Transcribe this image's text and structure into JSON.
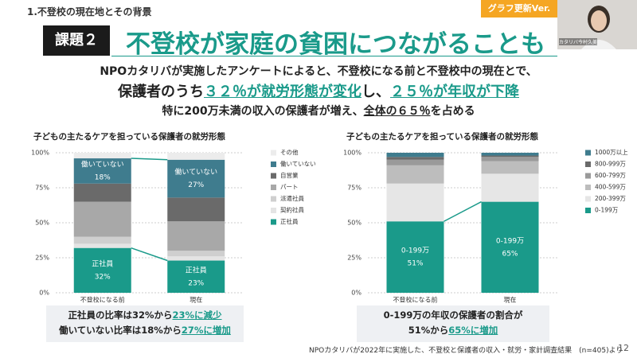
{
  "slide": {
    "section": "1.不登校の現在地とその背景",
    "badge": "グラフ更新Ver.",
    "camera_name": "カタリバ今村久美",
    "tag": "課題２",
    "title": "不登校が家庭の貧困につながることも",
    "line1": "NPOカタリバが実施したアンケートによると、不登校になる前と不登校中の現在とで、",
    "line2": [
      "保護者のうち",
      "３２％が就労形態が変化",
      "し、",
      "２５％が年収が下降"
    ],
    "line3": [
      "特に200万未満の収入の保護者が増え、",
      "全体の６５％",
      "を占める"
    ],
    "summary_left": [
      [
        "正社員の比率は32%から",
        "23%に減少"
      ],
      [
        "働いていない比率は18%から",
        "27%に増加"
      ]
    ],
    "summary_right": [
      [
        "0-199万の年収の保護者の割合が"
      ],
      [
        "51%から",
        "65%に増加"
      ]
    ],
    "footer": "NPOカタリバが2022年に実施した、不登校と保護者の収入・就労・家計調査結果　(n=405)より",
    "page": "12"
  },
  "chart_data": [
    {
      "type": "stacked_bar",
      "title": "子どもの主たるケアを担っている保護者の就労形態",
      "categories": [
        "不登校になる前",
        "現在"
      ],
      "ylim": [
        0,
        100
      ],
      "yticks": [
        {
          "value": 0,
          "label": "0%"
        },
        {
          "value": 25,
          "label": "25%"
        },
        {
          "value": 50,
          "label": "50%"
        },
        {
          "value": 75,
          "label": "75%"
        },
        {
          "value": 100,
          "label": "100%"
        }
      ],
      "grid": true,
      "series": [
        {
          "name": "正社員",
          "color": "#1a9a8a",
          "values": [
            32,
            23
          ],
          "value_labels": [
            "32%",
            "23%"
          ]
        },
        {
          "name": "契約社員",
          "color": "#e4e4e4",
          "values": [
            3,
            3
          ]
        },
        {
          "name": "派遣社員",
          "color": "#cfcfcf",
          "values": [
            5,
            4
          ]
        },
        {
          "name": "パート",
          "color": "#a8a8a8",
          "values": [
            25,
            21
          ]
        },
        {
          "name": "自営業",
          "color": "#6a6a6a",
          "values": [
            13,
            17
          ]
        },
        {
          "name": "働いていない",
          "color": "#3f7c8e",
          "values": [
            18,
            27
          ],
          "value_labels": [
            "18%",
            "27%"
          ]
        },
        {
          "name": "その他",
          "color": "#ececec",
          "values": [
            4,
            5
          ]
        }
      ]
    },
    {
      "type": "stacked_bar",
      "title": "子どもの主たるケアを担っている保護者の就労形態",
      "categories": [
        "不登校になる前",
        "現在"
      ],
      "ylim": [
        0,
        100
      ],
      "yticks": [
        {
          "value": 0,
          "label": "0%"
        },
        {
          "value": 25,
          "label": "25%"
        },
        {
          "value": 50,
          "label": "50%"
        },
        {
          "value": 75,
          "label": "75%"
        },
        {
          "value": 100,
          "label": "100%"
        }
      ],
      "grid": true,
      "series": [
        {
          "name": "0-199万",
          "color": "#1a9a8a",
          "values": [
            51,
            65
          ],
          "value_labels": [
            "51%",
            "65%"
          ]
        },
        {
          "name": "200-399万",
          "color": "#e6e6e6",
          "values": [
            27,
            20
          ]
        },
        {
          "name": "400-599万",
          "color": "#bdbdbd",
          "values": [
            13,
            9
          ]
        },
        {
          "name": "600-799万",
          "color": "#9a9a9a",
          "values": [
            4,
            3
          ]
        },
        {
          "name": "800-999万",
          "color": "#6a6a6a",
          "values": [
            2,
            1
          ]
        },
        {
          "name": "1000万以上",
          "color": "#3f7c8e",
          "values": [
            3,
            2
          ]
        }
      ]
    }
  ]
}
